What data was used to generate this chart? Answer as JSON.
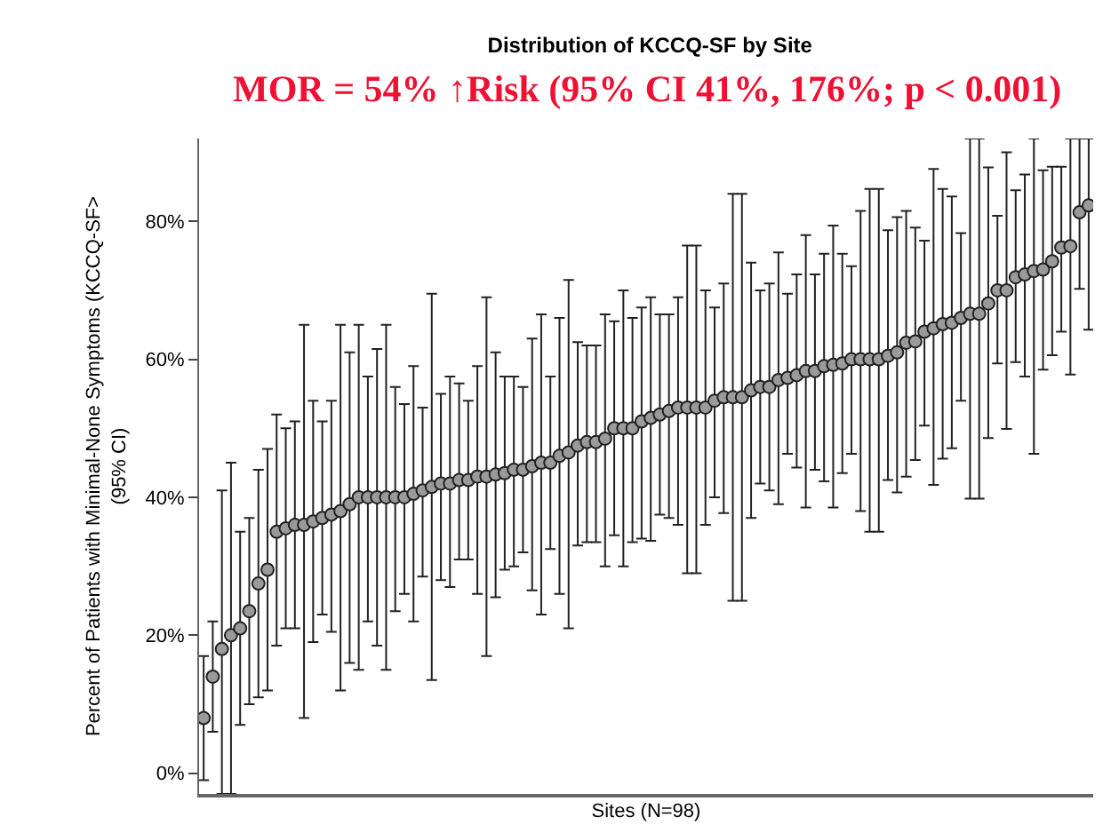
{
  "chart_data": {
    "type": "scatter",
    "title": "Distribution of KCCQ-SF by Site",
    "annotations": [
      "MOR = 54% ↑Risk (95% CI 41%, 176%; p < 0.001)"
    ],
    "xlabel": "Sites (N=98)",
    "ylabel": "Percent of Patients with Minimal-None Symptoms (KCCQ-SF>\n(95% CI)",
    "categories": [
      null,
      null,
      null,
      null,
      null,
      null,
      null,
      null,
      null,
      null,
      null,
      null,
      null,
      null,
      null,
      null,
      null,
      null,
      null,
      null,
      null,
      null,
      null,
      null,
      null,
      null,
      null,
      null,
      null,
      null,
      null,
      null,
      null,
      null,
      null,
      null,
      null,
      null,
      null,
      null,
      null,
      null,
      null,
      null,
      null,
      null,
      null,
      null,
      null,
      null,
      null,
      null,
      null,
      null,
      null,
      null,
      null,
      null,
      null,
      null,
      null,
      null,
      null,
      null,
      null,
      null,
      null,
      null,
      null,
      null,
      null,
      null,
      null,
      null,
      null,
      null,
      null,
      null,
      null,
      null,
      null,
      null,
      null,
      null,
      null,
      null,
      null,
      null,
      null,
      null,
      null,
      null,
      null,
      null,
      null,
      null,
      null,
      null
    ],
    "values": [
      8,
      14,
      18,
      20,
      21,
      23.5,
      27.5,
      29.5,
      35,
      35.5,
      36,
      36,
      36.5,
      37,
      37.5,
      38,
      39,
      40,
      40,
      40,
      40,
      40,
      40,
      40.5,
      41,
      41.5,
      42,
      42,
      42.5,
      42.5,
      43,
      43,
      43.3,
      43.5,
      44,
      44,
      44.5,
      45,
      45,
      46,
      46.5,
      47.5,
      48,
      48,
      48.5,
      50,
      50,
      50,
      51,
      51.5,
      52,
      52.5,
      53,
      53,
      53,
      53,
      54,
      54.5,
      54.5,
      54.5,
      55.5,
      56,
      56,
      57,
      57.3,
      57.7,
      58.3,
      58.3,
      59,
      59.2,
      59.4,
      60,
      60,
      60,
      60,
      60.5,
      61,
      62.4,
      62.6,
      64,
      64.5,
      65.1,
      65.3,
      66,
      66.6,
      66.6,
      68.1,
      70,
      70,
      71.9,
      72.3,
      72.8,
      73,
      74.2,
      76.2,
      76.4,
      81.3,
      82.3
    ],
    "errors": [
      [
        -1,
        17
      ],
      [
        6,
        22
      ],
      [
        -3,
        41
      ],
      [
        -3,
        45
      ],
      [
        7,
        35
      ],
      [
        10,
        37
      ],
      [
        11,
        44
      ],
      [
        12,
        47
      ],
      [
        18.5,
        52
      ],
      [
        21,
        50
      ],
      [
        21,
        51
      ],
      [
        8,
        65
      ],
      [
        19,
        54
      ],
      [
        23,
        51
      ],
      [
        20.5,
        54
      ],
      [
        12,
        65
      ],
      [
        16,
        61
      ],
      [
        15,
        65
      ],
      [
        22,
        57.5
      ],
      [
        18.5,
        61.5
      ],
      [
        15,
        65
      ],
      [
        23.5,
        56
      ],
      [
        26,
        53.5
      ],
      [
        22,
        59
      ],
      [
        28.5,
        53
      ],
      [
        13.5,
        69.5
      ],
      [
        28,
        55
      ],
      [
        27,
        57.5
      ],
      [
        31,
        56.5
      ],
      [
        31,
        54
      ],
      [
        26,
        59
      ],
      [
        17,
        69
      ],
      [
        25.5,
        61
      ],
      [
        29.5,
        57.5
      ],
      [
        30,
        57.5
      ],
      [
        32,
        56
      ],
      [
        26.5,
        63
      ],
      [
        23,
        66.5
      ],
      [
        32.5,
        57.5
      ],
      [
        26,
        66
      ],
      [
        21,
        71.5
      ],
      [
        33,
        62.5
      ],
      [
        33.5,
        62
      ],
      [
        33.5,
        62
      ],
      [
        30,
        66.5
      ],
      [
        34.5,
        65.5
      ],
      [
        30,
        70
      ],
      [
        33.5,
        66
      ],
      [
        34,
        67.5
      ],
      [
        33.7,
        69
      ],
      [
        37.5,
        66.5
      ],
      [
        37,
        66.5
      ],
      [
        36,
        69
      ],
      [
        29,
        76.5
      ],
      [
        29,
        76.5
      ],
      [
        36,
        70
      ],
      [
        40,
        67.5
      ],
      [
        37.7,
        71
      ],
      [
        25,
        84
      ],
      [
        25,
        84
      ],
      [
        37,
        74
      ],
      [
        42,
        70
      ],
      [
        41,
        71
      ],
      [
        39,
        75.5
      ],
      [
        46.3,
        69.5
      ],
      [
        44.3,
        72.3
      ],
      [
        38.5,
        78
      ],
      [
        44,
        72.3
      ],
      [
        42.3,
        75.3
      ],
      [
        38.5,
        79.4
      ],
      [
        43.5,
        75.3
      ],
      [
        46.3,
        73.5
      ],
      [
        38,
        81.5
      ],
      [
        35,
        84.7
      ],
      [
        35,
        84.7
      ],
      [
        42.5,
        78.7
      ],
      [
        40.7,
        80.6
      ],
      [
        43,
        81.5
      ],
      [
        45.4,
        79.1
      ],
      [
        50.4,
        77.2
      ],
      [
        41.8,
        87.6
      ],
      [
        45.6,
        84.7
      ],
      [
        47.1,
        83.6
      ],
      [
        54,
        78.3
      ],
      [
        39.8,
        92
      ],
      [
        39.8,
        92
      ],
      [
        48.6,
        87.8
      ],
      [
        59.4,
        80.8
      ],
      [
        49.9,
        90
      ],
      [
        59.6,
        84.5
      ],
      [
        57.5,
        86.8
      ],
      [
        46.3,
        92
      ],
      [
        58.5,
        87.4
      ],
      [
        60.6,
        87.9
      ],
      [
        64,
        87.9
      ],
      [
        57.8,
        92
      ],
      [
        70.2,
        92
      ],
      [
        64.3,
        92
      ]
    ],
    "color": "#9a9a9a",
    "marker": "circle",
    "ylim": [
      -3,
      92
    ],
    "yticks": [
      {
        "value": 0,
        "label": "0%"
      },
      {
        "value": 20,
        "label": "20%"
      },
      {
        "value": 40,
        "label": "40%"
      },
      {
        "value": 60,
        "label": "60%"
      },
      {
        "value": 80,
        "label": "80%"
      }
    ],
    "tick_labels": "y",
    "legend": false
  }
}
